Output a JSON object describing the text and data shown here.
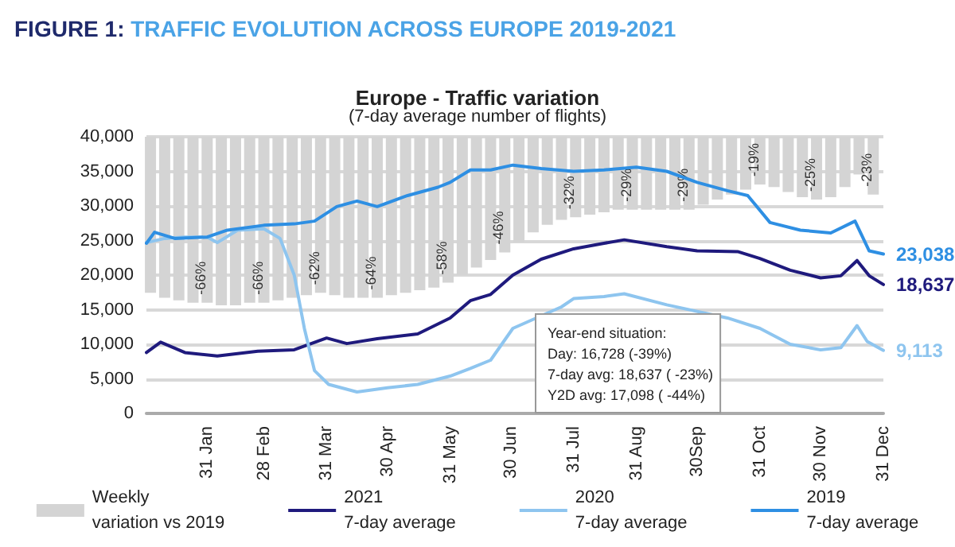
{
  "chart_data": {
    "type": "line",
    "title": "FIGURE 1: TRAFFIC EVOLUTION ACROSS EUROPE 2019-2021",
    "subtitle": "Europe - Traffic variation",
    "annotations": [
      "(7-day average number of flights)",
      "Year-end situation:\nDay: 16,728 (-39%)\n7-day avg: 18,637 ( -23%)\nY2D avg: 17,098 ( -44%)"
    ],
    "xlim": [
      "--01-01",
      "--12-31"
    ],
    "xticks": [
      {
        "value": "--01-31",
        "label": "31 Jan"
      },
      {
        "value": "--02-28",
        "label": "28 Feb"
      },
      {
        "value": "--03-31",
        "label": "31 Mar"
      },
      {
        "value": "--04-30",
        "label": "30 Apr"
      },
      {
        "value": "--05-31",
        "label": "31 May"
      },
      {
        "value": "--06-30",
        "label": "30 Jun"
      },
      {
        "value": "--07-31",
        "label": "31 Jul"
      },
      {
        "value": "--08-31",
        "label": "31 Aug"
      },
      {
        "value": "--09-30",
        "label": "30Sep"
      },
      {
        "value": "--10-31",
        "label": "31 Oct"
      },
      {
        "value": "--11-30",
        "label": "30 Nov"
      },
      {
        "value": "--12-31",
        "label": "31 Dec"
      }
    ],
    "ylim": [
      0,
      40000
    ],
    "yticks": [
      0,
      {
        "value": 5000,
        "label": "5,000"
      },
      {
        "value": 10000,
        "label": "10,000"
      },
      {
        "value": 15000,
        "label": "15,000"
      },
      {
        "value": 20000,
        "label": "20,000"
      },
      {
        "value": 25000,
        "label": "25,000"
      },
      {
        "value": 30000,
        "label": "30,000"
      },
      {
        "value": 35000,
        "label": "35,000"
      },
      {
        "value": 40000,
        "label": "40,000"
      }
    ],
    "y2lim": [
      -110,
      0
    ],
    "grid": "y",
    "legend": "bottom",
    "marker": "none",
    "line_style": "solid",
    "series": [
      {
        "name": "Weekly\nvariation vs 2019",
        "type": "bar",
        "axis": "y2",
        "color": "#d4d4d4",
        "x": [
          "--01-03",
          "--01-10",
          "--01-17",
          "--01-24",
          "--01-31",
          "--02-07",
          "--02-14",
          "--02-21",
          "--02-28",
          "--03-07",
          "--03-14",
          "--03-21",
          "--03-28",
          "--04-04",
          "--04-11",
          "--04-18",
          "--04-25",
          "--05-02",
          "--05-09",
          "--05-16",
          "--05-23",
          "--05-30",
          "--06-06",
          "--06-13",
          "--06-20",
          "--06-27",
          "--07-04",
          "--07-11",
          "--07-18",
          "--07-25",
          "--08-01",
          "--08-08",
          "--08-15",
          "--08-22",
          "--08-29",
          "--09-05",
          "--09-12",
          "--09-19",
          "--09-26",
          "--10-03",
          "--10-10",
          "--10-17",
          "--10-24",
          "--10-31",
          "--11-07",
          "--11-14",
          "--11-21",
          "--11-28",
          "--12-05",
          "--12-12",
          "--12-19",
          "--12-26"
        ],
        "values": [
          -62,
          -64,
          -65,
          -66,
          -66,
          -67,
          -67,
          -66,
          -66,
          -65,
          -64,
          -63,
          -62,
          -63,
          -64,
          -64,
          -64,
          -63,
          -62,
          -61,
          -60,
          -58,
          -55,
          -52,
          -49,
          -46,
          -42,
          -38,
          -35,
          -33,
          -32,
          -31,
          -30,
          -29,
          -29,
          -29,
          -29,
          -29,
          -29,
          -27,
          -25,
          -23,
          -21,
          -19,
          -20,
          -22,
          -24,
          -25,
          -24,
          -20,
          -15,
          -23
        ],
        "value_labels": [
          null,
          null,
          null,
          null,
          "-66%",
          null,
          null,
          null,
          "-66%",
          null,
          null,
          null,
          "-62%",
          null,
          null,
          null,
          "-64%",
          null,
          null,
          null,
          null,
          "-58%",
          null,
          null,
          null,
          "-46%",
          null,
          null,
          null,
          null,
          "-32%",
          null,
          null,
          null,
          "-29%",
          null,
          null,
          null,
          "-29%",
          null,
          null,
          null,
          null,
          "-19%",
          null,
          null,
          null,
          "-25%",
          null,
          null,
          null,
          "-23%"
        ]
      },
      {
        "name": "2021\n7-day average",
        "color": "#1f1a7d",
        "x": [
          "--01-01",
          "--01-08",
          "--01-20",
          "--02-05",
          "--02-25",
          "--03-15",
          "--03-31",
          "--04-10",
          "--04-25",
          "--05-15",
          "--05-31",
          "--06-10",
          "--06-20",
          "--07-01",
          "--07-15",
          "--07-31",
          "--08-15",
          "--08-25",
          "--09-15",
          "--09-30",
          "--10-20",
          "--10-31",
          "--11-15",
          "--11-30",
          "--12-10",
          "--12-18",
          "--12-24",
          "--12-31"
        ],
        "values": [
          8800,
          10300,
          8800,
          8300,
          9000,
          9200,
          10900,
          10100,
          10800,
          11500,
          13800,
          16300,
          17200,
          20000,
          22300,
          23800,
          24600,
          25100,
          24100,
          23500,
          23400,
          22400,
          20700,
          19600,
          19900,
          22100,
          19900,
          18637
        ],
        "value_labels": [
          null,
          null,
          null,
          null,
          null,
          null,
          null,
          null,
          null,
          null,
          null,
          null,
          null,
          null,
          null,
          null,
          null,
          null,
          null,
          null,
          null,
          null,
          null,
          null,
          null,
          null,
          null,
          "18,637"
        ]
      },
      {
        "name": "2020\n7-day average",
        "color": "#8ec5ef",
        "x": [
          "--01-01",
          "--01-10",
          "--01-20",
          "--01-31",
          "--02-05",
          "--02-15",
          "--02-28",
          "--03-08",
          "--03-15",
          "--03-20",
          "--03-25",
          "--04-01",
          "--04-15",
          "--04-30",
          "--05-15",
          "--05-31",
          "--06-10",
          "--06-20",
          "--07-01",
          "--07-25",
          "--07-31",
          "--08-15",
          "--08-25",
          "--09-15",
          "--10-15",
          "--10-31",
          "--11-15",
          "--11-30",
          "--12-10",
          "--12-18",
          "--12-23",
          "--12-31"
        ],
        "values": [
          24700,
          25300,
          25500,
          25500,
          24700,
          26500,
          26700,
          25300,
          20000,
          12300,
          6200,
          4200,
          3100,
          3700,
          4200,
          5400,
          6500,
          7700,
          12300,
          15400,
          16600,
          16900,
          17300,
          15700,
          13800,
          12300,
          10000,
          9200,
          9500,
          12700,
          10400,
          9113
        ],
        "value_labels": [
          null,
          null,
          null,
          null,
          null,
          null,
          null,
          null,
          null,
          null,
          null,
          null,
          null,
          null,
          null,
          null,
          null,
          null,
          null,
          null,
          null,
          null,
          null,
          null,
          null,
          null,
          null,
          null,
          null,
          null,
          null,
          "9,113"
        ]
      },
      {
        "name": "2019\n7-day average",
        "color": "#2e8fe3",
        "x": [
          "--01-01",
          "--01-05",
          "--01-15",
          "--01-31",
          "--02-10",
          "--02-28",
          "--03-15",
          "--03-25",
          "--04-05",
          "--04-15",
          "--04-25",
          "--05-10",
          "--05-25",
          "--05-31",
          "--06-10",
          "--06-20",
          "--07-01",
          "--07-15",
          "--07-31",
          "--08-15",
          "--08-31",
          "--09-15",
          "--09-30",
          "--10-15",
          "--10-25",
          "--11-05",
          "--11-20",
          "--12-05",
          "--12-17",
          "--12-24",
          "--12-31"
        ],
        "values": [
          24600,
          26200,
          25300,
          25500,
          26500,
          27200,
          27400,
          27800,
          29900,
          30700,
          29900,
          31500,
          32700,
          33400,
          35200,
          35200,
          35900,
          35400,
          35000,
          35200,
          35600,
          35000,
          33400,
          32200,
          31500,
          27600,
          26500,
          26100,
          27800,
          23500,
          23038
        ],
        "value_labels": [
          null,
          null,
          null,
          null,
          null,
          null,
          null,
          null,
          null,
          null,
          null,
          null,
          null,
          null,
          null,
          null,
          null,
          null,
          null,
          null,
          null,
          null,
          null,
          null,
          null,
          null,
          null,
          null,
          null,
          null,
          "23,038"
        ]
      }
    ]
  }
}
